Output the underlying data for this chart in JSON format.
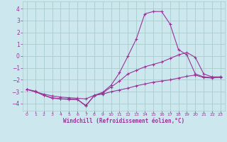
{
  "xlabel": "Windchill (Refroidissement éolien,°C)",
  "background_color": "#cce8ee",
  "grid_color": "#aacccc",
  "line_color": "#993399",
  "xlim": [
    -0.5,
    23.5
  ],
  "ylim": [
    -4.6,
    4.6
  ],
  "yticks": [
    -4,
    -3,
    -2,
    -1,
    0,
    1,
    2,
    3,
    4
  ],
  "xticks": [
    0,
    1,
    2,
    3,
    4,
    5,
    6,
    7,
    8,
    9,
    10,
    11,
    12,
    13,
    14,
    15,
    16,
    17,
    18,
    19,
    20,
    21,
    22,
    23
  ],
  "series": [
    {
      "x": [
        0,
        1,
        2,
        3,
        4,
        5,
        6,
        7,
        8,
        9,
        10,
        11,
        12,
        13,
        14,
        15,
        16,
        17,
        18,
        19,
        20,
        21,
        22,
        23
      ],
      "y": [
        -2.8,
        -3.0,
        -3.2,
        -3.35,
        -3.45,
        -3.5,
        -3.55,
        -3.6,
        -3.3,
        -3.2,
        -3.0,
        -2.85,
        -2.7,
        -2.5,
        -2.35,
        -2.2,
        -2.1,
        -2.0,
        -1.85,
        -1.7,
        -1.6,
        -1.8,
        -1.85,
        -1.75
      ]
    },
    {
      "x": [
        0,
        1,
        2,
        3,
        4,
        5,
        6,
        7,
        8,
        9,
        10,
        11,
        12,
        13,
        14,
        15,
        16,
        17,
        18,
        19,
        20,
        21,
        22,
        23
      ],
      "y": [
        -2.8,
        -3.0,
        -3.3,
        -3.5,
        -3.6,
        -3.65,
        -3.65,
        -4.15,
        -3.35,
        -3.1,
        -2.6,
        -2.1,
        -1.5,
        -1.2,
        -0.9,
        -0.7,
        -0.5,
        -0.2,
        0.1,
        0.3,
        -0.1,
        -1.5,
        -1.75,
        -1.75
      ]
    },
    {
      "x": [
        0,
        1,
        2,
        3,
        4,
        5,
        6,
        7,
        8,
        9,
        10,
        11,
        12,
        13,
        14,
        15,
        16,
        17,
        18,
        19,
        20,
        21,
        22,
        23
      ],
      "y": [
        -2.8,
        -2.95,
        -3.3,
        -3.55,
        -3.6,
        -3.6,
        -3.65,
        -4.2,
        -3.3,
        -3.05,
        -2.45,
        -1.4,
        0.0,
        1.45,
        3.55,
        3.75,
        3.75,
        2.7,
        0.55,
        0.1,
        -1.5,
        -1.75,
        -1.8,
        -1.8
      ]
    }
  ]
}
